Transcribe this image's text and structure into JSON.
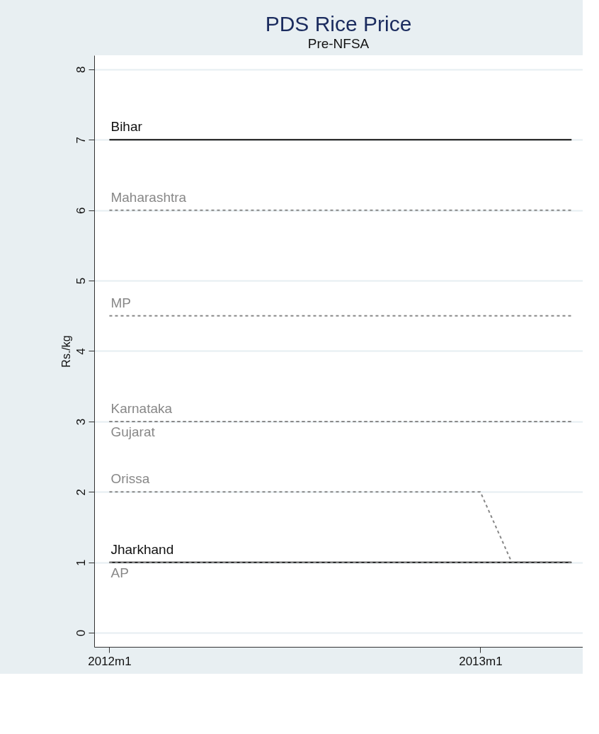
{
  "chart_data": {
    "type": "line",
    "title": "PDS Rice Price",
    "subtitle": "Pre-NFSA",
    "ylabel": "Rs./kg",
    "xlim": [
      "2011-12-17",
      "2013-04-12"
    ],
    "xticks": [
      {
        "value": "2012-01",
        "label": "2012m1"
      },
      {
        "value": "2013-01",
        "label": "2013m1"
      }
    ],
    "ylim": [
      -0.2,
      8.2
    ],
    "yticks": [
      0,
      1,
      2,
      3,
      4,
      5,
      6,
      7,
      8
    ],
    "grid": "y",
    "series": [
      {
        "name": "Bihar",
        "color": "#111111",
        "line_style": "solid",
        "x": [
          "2012-01",
          "2013-04"
        ],
        "values": [
          7,
          7
        ]
      },
      {
        "name": "Maharashtra",
        "color": "#888888",
        "line_style": "dashed",
        "x": [
          "2012-01",
          "2013-04"
        ],
        "values": [
          6,
          6
        ]
      },
      {
        "name": "MP",
        "color": "#888888",
        "line_style": "dashed",
        "x": [
          "2012-01",
          "2013-04"
        ],
        "values": [
          4.5,
          4.5
        ]
      },
      {
        "name": "Karnataka",
        "color": "#888888",
        "line_style": "dashed",
        "x": [
          "2012-01",
          "2013-04"
        ],
        "values": [
          3,
          3
        ]
      },
      {
        "name": "Gujarat",
        "color": "#888888",
        "line_style": "dashed",
        "x": [
          "2012-01",
          "2013-04"
        ],
        "values": [
          3,
          3
        ]
      },
      {
        "name": "Orissa",
        "color": "#888888",
        "line_style": "dashed",
        "x": [
          "2012-01",
          "2013-01",
          "2013-02",
          "2013-04"
        ],
        "values": [
          2,
          2,
          1,
          1
        ]
      },
      {
        "name": "Jharkhand",
        "color": "#111111",
        "line_style": "solid",
        "x": [
          "2012-01",
          "2013-04"
        ],
        "values": [
          1,
          1
        ]
      },
      {
        "name": "AP",
        "color": "#888888",
        "line_style": "dashed",
        "x": [
          "2012-01",
          "2013-04"
        ],
        "values": [
          1,
          1
        ]
      }
    ]
  }
}
